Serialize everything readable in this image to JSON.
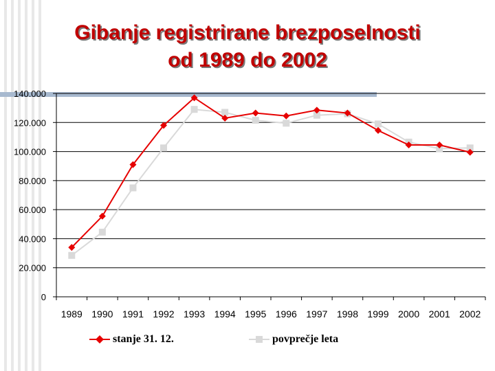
{
  "slide": {
    "title_line1": "Gibanje registrirane brezposelnosti",
    "title_line2": "od 1989 do 2002"
  },
  "colors": {
    "title": "#c00000",
    "series1": "#e60000",
    "series2": "#d9d9d9",
    "band": "#a7b9cf"
  },
  "chart_data": {
    "type": "line",
    "categories": [
      "1989",
      "1990",
      "1991",
      "1992",
      "1993",
      "1994",
      "1995",
      "1996",
      "1997",
      "1998",
      "1999",
      "2000",
      "2001",
      "2002"
    ],
    "y_tick_labels": [
      "0",
      "20.000",
      "40.000",
      "60.000",
      "80.000",
      "100.000",
      "120.000",
      "140.000"
    ],
    "y_ticks": [
      0,
      20000,
      40000,
      60000,
      80000,
      100000,
      120000,
      140000
    ],
    "ylim": [
      0,
      140000
    ],
    "grid": true,
    "legend_position": "bottom",
    "series": [
      {
        "name": "stanje 31. 12.",
        "marker": "diamond",
        "values": [
          34000,
          55500,
          91000,
          118000,
          137000,
          123000,
          126500,
          124500,
          128500,
          126500,
          114500,
          104500,
          104500,
          99500
        ]
      },
      {
        "name": "povprečje leta",
        "marker": "square",
        "values": [
          28500,
          44500,
          75000,
          102500,
          129000,
          127000,
          121500,
          119500,
          125000,
          126000,
          119000,
          106500,
          102000,
          102500
        ]
      }
    ]
  }
}
